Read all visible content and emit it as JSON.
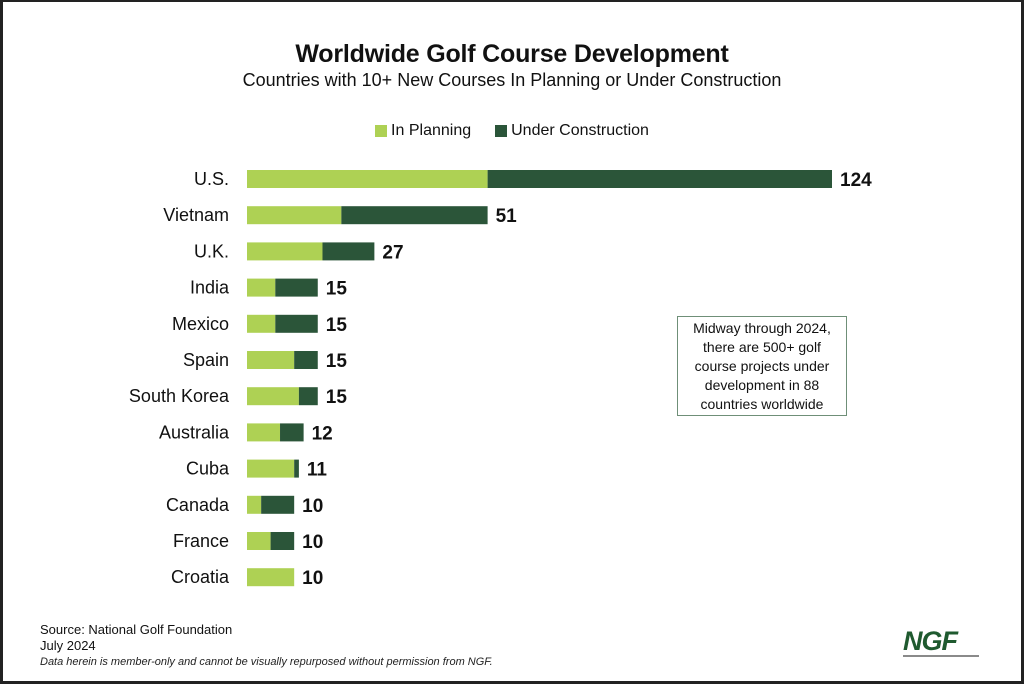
{
  "chart_data": {
    "type": "bar",
    "orientation": "horizontal",
    "stacked": true,
    "title": "Worldwide Golf Course Development",
    "subtitle": "Countries with 10+ New Courses In Planning or Under Construction",
    "xlabel": "",
    "ylabel": "",
    "xlim": [
      0,
      124
    ],
    "grid": false,
    "legend_position": "top-center",
    "categories": [
      "U.S.",
      "Vietnam",
      "U.K.",
      "India",
      "Mexico",
      "Spain",
      "South Korea",
      "Australia",
      "Cuba",
      "Canada",
      "France",
      "Croatia"
    ],
    "series": [
      {
        "name": "In Planning",
        "color": "#aed154",
        "values": [
          51,
          20,
          16,
          6,
          6,
          10,
          11,
          7,
          10,
          3,
          5,
          10
        ]
      },
      {
        "name": "Under Construction",
        "color": "#2b5539",
        "values": [
          73,
          31,
          11,
          9,
          9,
          5,
          4,
          5,
          1,
          7,
          5,
          0
        ]
      }
    ],
    "totals": [
      124,
      51,
      27,
      15,
      15,
      15,
      15,
      12,
      11,
      10,
      10,
      10
    ],
    "annotation": "Midway through 2024, there are 500+ golf course projects under development in 88 countries worldwide"
  },
  "legend": [
    {
      "label": "In Planning",
      "color": "#aed154"
    },
    {
      "label": "Under Construction",
      "color": "#2b5539"
    }
  ],
  "callout": {
    "text": "Midway through 2024, there are 500+ golf course projects under development in 88 countries worldwide"
  },
  "footer": {
    "source": "Source: National Golf Foundation",
    "date": "July 2024",
    "disclaimer": "Data herein is member-only and cannot be visually repurposed without permission from NGF."
  },
  "logo": {
    "text": "NGF",
    "color": "#1f5a2f"
  }
}
